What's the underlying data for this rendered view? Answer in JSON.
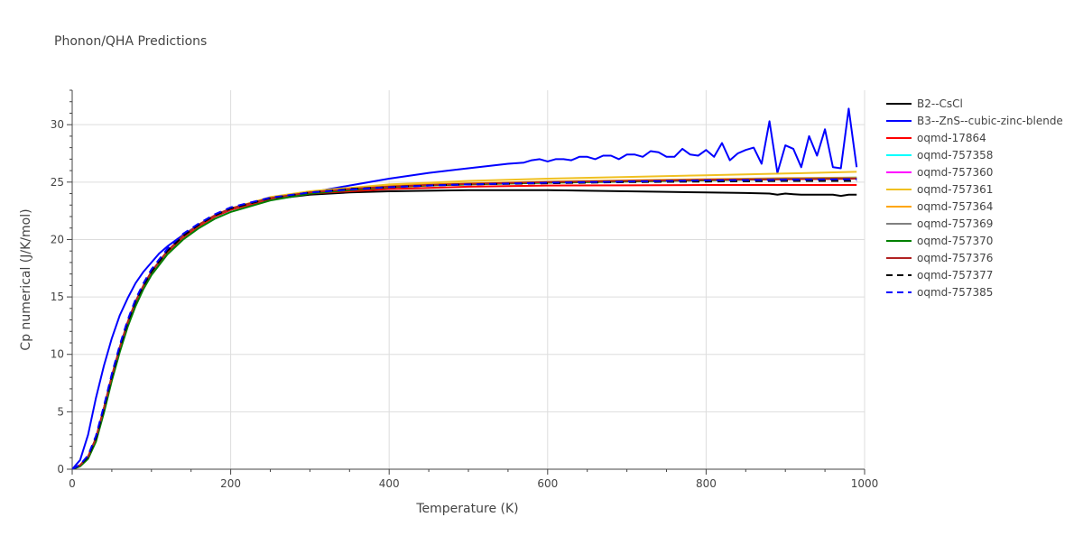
{
  "chart_data": {
    "type": "line",
    "title": "Phonon/QHA Predictions",
    "xlabel": "Temperature (K)",
    "ylabel": "Cp numerical (J/K/mol)",
    "xlim": [
      0,
      1000
    ],
    "ylim": [
      0,
      33
    ],
    "xticks": [
      0,
      200,
      400,
      600,
      800,
      1000
    ],
    "yticks": [
      0,
      5,
      10,
      15,
      20,
      25,
      30
    ],
    "grid": true,
    "legend_position": "right",
    "series": [
      {
        "name": "B2--CsCl",
        "color": "#000000",
        "dash": "solid",
        "x": [
          0,
          10,
          20,
          30,
          40,
          50,
          60,
          70,
          80,
          90,
          100,
          120,
          140,
          160,
          180,
          200,
          250,
          300,
          350,
          400,
          450,
          500,
          550,
          600,
          650,
          700,
          750,
          800,
          850,
          880,
          890,
          900,
          910,
          920,
          940,
          960,
          970,
          980,
          990
        ],
        "y": [
          0,
          0.3,
          1.0,
          2.6,
          5.2,
          8.0,
          10.5,
          12.7,
          14.5,
          15.9,
          17.1,
          18.9,
          20.2,
          21.2,
          22.0,
          22.6,
          23.5,
          23.9,
          24.1,
          24.2,
          24.25,
          24.3,
          24.3,
          24.3,
          24.25,
          24.2,
          24.15,
          24.1,
          24.05,
          24.0,
          23.9,
          24.0,
          23.95,
          23.9,
          23.9,
          23.9,
          23.8,
          23.9,
          23.9
        ]
      },
      {
        "name": "B3--ZnS--cubic-zinc-blende",
        "color": "#0000ff",
        "dash": "solid",
        "x": [
          0,
          10,
          20,
          30,
          40,
          50,
          60,
          70,
          80,
          90,
          100,
          110,
          120,
          130,
          140,
          160,
          180,
          200,
          250,
          300,
          350,
          400,
          450,
          500,
          550,
          570,
          580,
          590,
          600,
          610,
          620,
          630,
          640,
          650,
          660,
          670,
          680,
          690,
          700,
          710,
          720,
          730,
          740,
          750,
          760,
          770,
          780,
          790,
          800,
          810,
          820,
          830,
          840,
          850,
          860,
          870,
          880,
          890,
          900,
          910,
          920,
          930,
          940,
          950,
          960,
          970,
          980,
          990
        ],
        "y": [
          0,
          0.8,
          3.0,
          6.2,
          9.0,
          11.4,
          13.4,
          14.9,
          16.2,
          17.2,
          18.0,
          18.8,
          19.4,
          19.9,
          20.4,
          21.3,
          22.0,
          22.6,
          23.6,
          24.1,
          24.7,
          25.3,
          25.8,
          26.2,
          26.6,
          26.7,
          26.9,
          27.0,
          26.8,
          27.0,
          27.0,
          26.9,
          27.2,
          27.2,
          27.0,
          27.3,
          27.3,
          27.0,
          27.4,
          27.4,
          27.2,
          27.7,
          27.6,
          27.2,
          27.2,
          27.9,
          27.4,
          27.3,
          27.8,
          27.2,
          28.4,
          26.9,
          27.5,
          27.8,
          28.0,
          26.6,
          30.3,
          25.8,
          28.2,
          27.9,
          26.3,
          29.0,
          27.3,
          29.6,
          26.3,
          26.2,
          31.4,
          26.3
        ]
      },
      {
        "name": "oqmd-17864",
        "color": "#ff0000",
        "dash": "solid",
        "x": [
          0,
          10,
          20,
          30,
          40,
          50,
          60,
          70,
          80,
          90,
          100,
          120,
          140,
          160,
          180,
          200,
          250,
          300,
          350,
          400,
          450,
          500,
          550,
          600,
          700,
          800,
          900,
          990
        ],
        "y": [
          0,
          0.3,
          1.0,
          2.6,
          5.2,
          8.0,
          10.5,
          12.7,
          14.5,
          15.9,
          17.1,
          18.9,
          20.2,
          21.2,
          22.0,
          22.6,
          23.5,
          24.0,
          24.2,
          24.4,
          24.5,
          24.6,
          24.65,
          24.7,
          24.72,
          24.75,
          24.75,
          24.75
        ]
      },
      {
        "name": "oqmd-757358",
        "color": "#00ffff",
        "dash": "solid",
        "x": [
          0,
          10,
          20,
          30,
          40,
          50,
          60,
          70,
          80,
          90,
          100,
          120,
          140,
          160,
          180,
          200,
          250,
          300,
          350,
          400,
          450,
          500,
          600,
          700,
          800,
          900,
          990
        ],
        "y": [
          0,
          0.35,
          1.1,
          2.7,
          5.3,
          8.1,
          10.6,
          12.8,
          14.6,
          16.0,
          17.2,
          19.0,
          20.3,
          21.3,
          22.1,
          22.7,
          23.6,
          24.1,
          24.4,
          24.6,
          24.75,
          24.85,
          25.0,
          25.1,
          25.2,
          25.3,
          25.4
        ]
      },
      {
        "name": "oqmd-757360",
        "color": "#ff00ff",
        "dash": "solid",
        "x": [
          0,
          10,
          20,
          30,
          40,
          50,
          60,
          70,
          80,
          90,
          100,
          120,
          140,
          160,
          180,
          200,
          250,
          300,
          350,
          400,
          450,
          500,
          600,
          700,
          800,
          900,
          990
        ],
        "y": [
          0,
          0.35,
          1.1,
          2.7,
          5.3,
          8.1,
          10.6,
          12.8,
          14.6,
          16.0,
          17.2,
          19.0,
          20.3,
          21.3,
          22.1,
          22.7,
          23.6,
          24.1,
          24.4,
          24.6,
          24.75,
          24.85,
          25.0,
          25.1,
          25.2,
          25.25,
          25.3
        ]
      },
      {
        "name": "oqmd-757361",
        "color": "#f0c020",
        "dash": "solid",
        "x": [
          0,
          10,
          20,
          30,
          40,
          50,
          60,
          70,
          80,
          90,
          100,
          120,
          140,
          160,
          180,
          200,
          250,
          300,
          350,
          400,
          450,
          500,
          600,
          700,
          800,
          900,
          990
        ],
        "y": [
          0,
          0.35,
          1.1,
          2.7,
          5.3,
          8.1,
          10.6,
          12.8,
          14.6,
          16.0,
          17.2,
          19.0,
          20.3,
          21.3,
          22.1,
          22.7,
          23.7,
          24.2,
          24.5,
          24.8,
          24.95,
          25.1,
          25.3,
          25.45,
          25.6,
          25.75,
          25.9
        ]
      },
      {
        "name": "oqmd-757364",
        "color": "#ffa500",
        "dash": "solid",
        "x": [
          0,
          10,
          20,
          30,
          40,
          50,
          60,
          70,
          80,
          90,
          100,
          120,
          140,
          160,
          180,
          200,
          250,
          300,
          350,
          400,
          450,
          500,
          600,
          700,
          800,
          900,
          990
        ],
        "y": [
          0,
          0.35,
          1.1,
          2.7,
          5.3,
          8.1,
          10.6,
          12.8,
          14.6,
          16.0,
          17.2,
          19.0,
          20.3,
          21.3,
          22.1,
          22.7,
          23.6,
          24.1,
          24.4,
          24.65,
          24.8,
          24.9,
          25.05,
          25.15,
          25.25,
          25.35,
          25.4
        ]
      },
      {
        "name": "oqmd-757369",
        "color": "#808080",
        "dash": "solid",
        "x": [
          0,
          10,
          20,
          30,
          40,
          50,
          60,
          70,
          80,
          90,
          100,
          120,
          140,
          160,
          180,
          200,
          250,
          300,
          350,
          400,
          450,
          500,
          600,
          700,
          800,
          900,
          990
        ],
        "y": [
          0,
          0.35,
          1.1,
          2.7,
          5.3,
          8.1,
          10.6,
          12.8,
          14.6,
          16.0,
          17.2,
          19.0,
          20.3,
          21.3,
          22.1,
          22.7,
          23.6,
          24.1,
          24.4,
          24.6,
          24.75,
          24.85,
          25.0,
          25.1,
          25.2,
          25.3,
          25.35
        ]
      },
      {
        "name": "oqmd-757370",
        "color": "#008000",
        "dash": "solid",
        "x": [
          0,
          10,
          20,
          30,
          40,
          50,
          60,
          70,
          80,
          90,
          100,
          120,
          140,
          160,
          180,
          200,
          250,
          300,
          350,
          400,
          450,
          500,
          600,
          700,
          800,
          900,
          990
        ],
        "y": [
          0,
          0.25,
          0.9,
          2.4,
          4.9,
          7.7,
          10.2,
          12.4,
          14.2,
          15.7,
          16.9,
          18.7,
          20.0,
          21.0,
          21.8,
          22.4,
          23.4,
          24.0,
          24.3,
          24.55,
          24.7,
          24.8,
          24.95,
          25.05,
          25.15,
          25.25,
          25.3
        ]
      },
      {
        "name": "oqmd-757376",
        "color": "#b22222",
        "dash": "solid",
        "x": [
          0,
          10,
          20,
          30,
          40,
          50,
          60,
          70,
          80,
          90,
          100,
          120,
          140,
          160,
          180,
          200,
          250,
          300,
          350,
          400,
          450,
          500,
          600,
          700,
          800,
          900,
          990
        ],
        "y": [
          0,
          0.35,
          1.1,
          2.7,
          5.3,
          8.1,
          10.6,
          12.8,
          14.6,
          16.0,
          17.2,
          19.0,
          20.3,
          21.3,
          22.1,
          22.7,
          23.6,
          24.1,
          24.4,
          24.6,
          24.75,
          24.85,
          25.0,
          25.1,
          25.2,
          25.25,
          25.3
        ]
      },
      {
        "name": "oqmd-757377",
        "color": "#000000",
        "dash": "dash",
        "x": [
          0,
          10,
          20,
          30,
          40,
          50,
          60,
          70,
          80,
          90,
          100,
          120,
          140,
          160,
          180,
          200,
          250,
          300,
          350,
          400,
          450,
          500,
          600,
          700,
          800,
          900,
          990
        ],
        "y": [
          0,
          0.35,
          1.1,
          2.7,
          5.3,
          8.1,
          10.6,
          12.8,
          14.6,
          16.0,
          17.2,
          19.0,
          20.3,
          21.3,
          22.1,
          22.7,
          23.6,
          24.1,
          24.4,
          24.55,
          24.7,
          24.8,
          24.9,
          25.0,
          25.05,
          25.1,
          25.1
        ]
      },
      {
        "name": "oqmd-757385",
        "color": "#0000ff",
        "dash": "dash",
        "x": [
          0,
          10,
          20,
          30,
          40,
          50,
          60,
          70,
          80,
          90,
          100,
          120,
          140,
          160,
          180,
          200,
          250,
          300,
          350,
          400,
          450,
          500,
          600,
          700,
          800,
          900,
          990
        ],
        "y": [
          0,
          0.4,
          1.2,
          2.9,
          5.5,
          8.3,
          10.8,
          13.0,
          14.8,
          16.2,
          17.4,
          19.2,
          20.5,
          21.4,
          22.2,
          22.8,
          23.65,
          24.1,
          24.35,
          24.55,
          24.7,
          24.8,
          24.95,
          25.05,
          25.15,
          25.2,
          25.25
        ]
      }
    ]
  }
}
